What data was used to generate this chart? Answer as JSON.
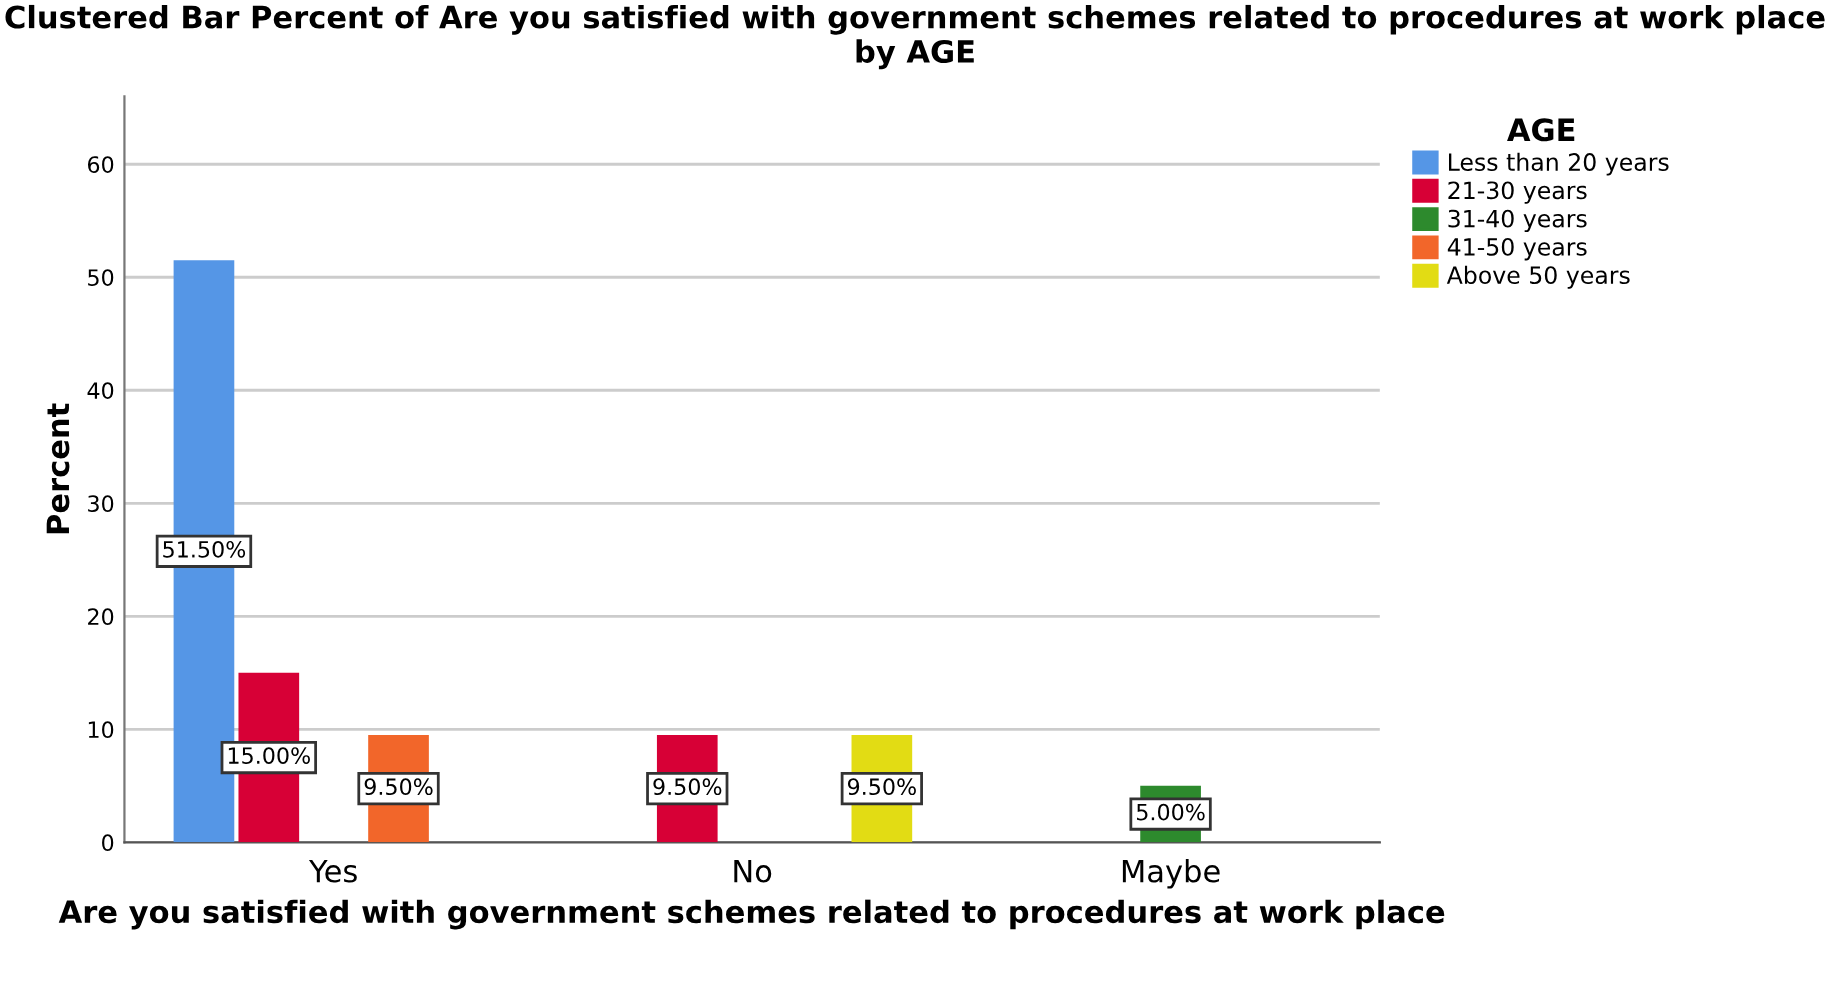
{
  "chart_data": {
    "type": "bar",
    "title": "Clustered Bar Percent of Are you satisfied with government schemes related to procedures at work place by AGE",
    "xlabel": "Are you satisfied with government schemes related to procedures at work place",
    "ylabel": "Percent",
    "legend_title": "AGE",
    "categories": [
      "Yes",
      "No",
      "Maybe"
    ],
    "series": [
      {
        "name": "Less than 20 years",
        "color": "#5596e6",
        "values": [
          51.5,
          null,
          null
        ],
        "value_labels": [
          "51.50%",
          null,
          null
        ]
      },
      {
        "name": "21-30 years",
        "color": "#d70036",
        "values": [
          15.0,
          9.5,
          null
        ],
        "value_labels": [
          "15.00%",
          "9.50%",
          null
        ]
      },
      {
        "name": "31-40 years",
        "color": "#2d8a2d",
        "values": [
          null,
          null,
          5.0
        ],
        "value_labels": [
          null,
          null,
          "5.00%"
        ]
      },
      {
        "name": "41-50 years",
        "color": "#f2662a",
        "values": [
          9.5,
          null,
          null
        ],
        "value_labels": [
          "9.50%",
          null,
          null
        ]
      },
      {
        "name": "Above 50 years",
        "color": "#e2dc14",
        "values": [
          null,
          9.5,
          null
        ],
        "value_labels": [
          null,
          "9.50%",
          null
        ]
      }
    ],
    "ylim": [
      0,
      66
    ],
    "yticks": [
      0,
      10,
      20,
      30,
      40,
      50,
      60
    ],
    "grid": "y",
    "legend": "top right"
  }
}
